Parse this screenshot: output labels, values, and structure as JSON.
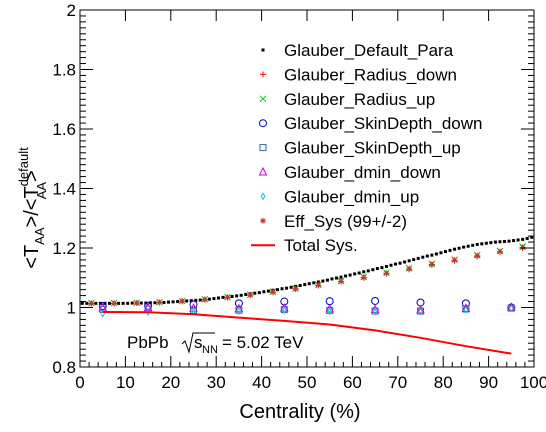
{
  "chart_data": {
    "type": "scatter",
    "xlabel": "Centrality (%)",
    "ylabel": "<T_AA>/<T_AA^default>",
    "ylabel_parts": {
      "lead": "<T",
      "sub1": "AA",
      "mid": ">/<T",
      "sup": "default",
      "sub2": "AA",
      "tail": ">"
    },
    "xlim": [
      0,
      100
    ],
    "ylim": [
      0.8,
      2.0
    ],
    "x_ticks": [
      "0",
      "10",
      "20",
      "30",
      "40",
      "50",
      "60",
      "70",
      "80",
      "90",
      "100"
    ],
    "y_ticks": [
      "0.8",
      "1",
      "1.2",
      "1.4",
      "1.6",
      "1.8",
      "2"
    ],
    "annotation": {
      "system": "PbPb",
      "sqrt_base": "s",
      "sqrt_sub": "NN",
      "energy": "= 5.02 TeV"
    },
    "legend_position": "top-right",
    "series": [
      {
        "name": "Glauber_Default_Para",
        "marker": "dot",
        "color": "#000000",
        "x": [
          0.5,
          1.5,
          2.5,
          3.5,
          4.5,
          5.5,
          6.5,
          7.5,
          8.5,
          9.5,
          10.5,
          11.5,
          12.5,
          13.5,
          14.5,
          15.5,
          16.5,
          17.5,
          18.5,
          19.5,
          20.5,
          21.5,
          22.5,
          23.5,
          24.5,
          25.5,
          26.5,
          27.5,
          28.5,
          29.5,
          30.5,
          31.5,
          32.5,
          33.5,
          34.5,
          35.5,
          36.5,
          37.5,
          38.5,
          39.5,
          40.5,
          41.5,
          42.5,
          43.5,
          44.5,
          45.5,
          46.5,
          47.5,
          48.5,
          49.5,
          50.5,
          51.5,
          52.5,
          53.5,
          54.5,
          55.5,
          56.5,
          57.5,
          58.5,
          59.5,
          60.5,
          61.5,
          62.5,
          63.5,
          64.5,
          65.5,
          66.5,
          67.5,
          68.5,
          69.5,
          70.5,
          71.5,
          72.5,
          73.5,
          74.5,
          75.5,
          76.5,
          77.5,
          78.5,
          79.5,
          80.5,
          81.5,
          82.5,
          83.5,
          84.5,
          85.5,
          86.5,
          87.5,
          88.5,
          89.5,
          90.5,
          91.5,
          92.5,
          93.5,
          94.5,
          95.5,
          96.5,
          97.5,
          98.5,
          99.5
        ],
        "y": [
          1.014,
          1.014,
          1.014,
          1.014,
          1.014,
          1.014,
          1.014,
          1.014,
          1.014,
          1.014,
          1.014,
          1.015,
          1.015,
          1.015,
          1.015,
          1.016,
          1.016,
          1.017,
          1.017,
          1.018,
          1.019,
          1.02,
          1.021,
          1.022,
          1.023,
          1.024,
          1.025,
          1.027,
          1.028,
          1.03,
          1.032,
          1.034,
          1.035,
          1.037,
          1.039,
          1.041,
          1.044,
          1.046,
          1.048,
          1.05,
          1.053,
          1.055,
          1.058,
          1.06,
          1.063,
          1.065,
          1.068,
          1.071,
          1.074,
          1.077,
          1.08,
          1.083,
          1.086,
          1.089,
          1.092,
          1.096,
          1.099,
          1.102,
          1.106,
          1.109,
          1.113,
          1.116,
          1.12,
          1.123,
          1.127,
          1.131,
          1.134,
          1.138,
          1.142,
          1.146,
          1.149,
          1.153,
          1.157,
          1.161,
          1.165,
          1.169,
          1.173,
          1.176,
          1.18,
          1.184,
          1.188,
          1.192,
          1.196,
          1.199,
          1.203,
          1.206,
          1.209,
          1.212,
          1.214,
          1.216,
          1.218,
          1.22,
          1.221,
          1.222,
          1.223,
          1.225,
          1.227,
          1.229,
          1.232,
          1.236
        ]
      },
      {
        "name": "Glauber_Radius_down",
        "marker": "plus",
        "color": "#ff0000",
        "x": [
          2.5,
          7.5,
          12.5,
          17.5,
          22.5,
          27.5,
          32.5,
          37.5,
          42.5,
          47.5,
          52.5,
          57.5,
          62.5,
          67.5,
          72.5,
          77.5,
          82.5,
          87.5,
          92.5,
          97.5
        ],
        "y": [
          1.013,
          1.014,
          1.015,
          1.017,
          1.021,
          1.026,
          1.033,
          1.041,
          1.051,
          1.062,
          1.074,
          1.087,
          1.1,
          1.114,
          1.128,
          1.143,
          1.157,
          1.172,
          1.186,
          1.2
        ]
      },
      {
        "name": "Glauber_Radius_up",
        "marker": "cross",
        "color": "#00cc00",
        "x": [
          2.5,
          7.5,
          12.5,
          17.5,
          22.5,
          27.5,
          32.5,
          37.5,
          42.5,
          47.5,
          52.5,
          57.5,
          62.5,
          67.5,
          72.5,
          77.5,
          82.5,
          87.5,
          92.5,
          97.5
        ],
        "y": [
          1.015,
          1.015,
          1.016,
          1.018,
          1.022,
          1.028,
          1.035,
          1.043,
          1.053,
          1.064,
          1.076,
          1.089,
          1.103,
          1.117,
          1.132,
          1.147,
          1.161,
          1.176,
          1.19,
          1.205
        ]
      },
      {
        "name": "Glauber_SkinDepth_down",
        "marker": "circle",
        "color": "#0000cc",
        "x": [
          5,
          15,
          25,
          35,
          45,
          55,
          65,
          75,
          85,
          95
        ],
        "y": [
          1.005,
          1.005,
          1.01,
          1.014,
          1.02,
          1.021,
          1.022,
          1.017,
          1.014,
          1.0
        ]
      },
      {
        "name": "Glauber_SkinDepth_up",
        "marker": "square",
        "color": "#3366aa",
        "x": [
          5,
          15,
          25,
          35,
          45,
          55,
          65,
          75,
          85,
          95
        ],
        "y": [
          0.994,
          0.995,
          0.991,
          0.991,
          0.993,
          0.99,
          0.988,
          0.988,
          0.995,
          0.998
        ]
      },
      {
        "name": "Glauber_dmin_down",
        "marker": "triangle",
        "color": "#cc00cc",
        "x": [
          5,
          15,
          25,
          35,
          45,
          55,
          65,
          75,
          85,
          95
        ],
        "y": [
          0.999,
          1.0,
          0.998,
          0.996,
          0.998,
          0.995,
          0.993,
          0.992,
          0.997,
          1.001
        ]
      },
      {
        "name": "Glauber_dmin_up",
        "marker": "diamond",
        "color": "#00cccc",
        "x": [
          5,
          15,
          25,
          35,
          45,
          55,
          65,
          75,
          85,
          95
        ],
        "y": [
          0.98,
          0.985,
          0.988,
          0.988,
          0.99,
          0.987,
          0.985,
          0.986,
          0.992,
          0.997
        ]
      },
      {
        "name": "Eff_Sys (99+/-2)",
        "marker": "star",
        "color": "#cc3333",
        "x": [
          2.5,
          7.5,
          12.5,
          17.5,
          22.5,
          27.5,
          32.5,
          37.5,
          42.5,
          47.5,
          52.5,
          57.5,
          62.5,
          67.5,
          72.5,
          77.5,
          82.5,
          87.5,
          92.5,
          97.5
        ],
        "y": [
          1.014,
          1.014,
          1.015,
          1.017,
          1.021,
          1.027,
          1.034,
          1.042,
          1.052,
          1.063,
          1.075,
          1.088,
          1.101,
          1.115,
          1.13,
          1.145,
          1.159,
          1.174,
          1.188,
          1.202
        ]
      },
      {
        "name": "Total Sys.",
        "marker": "line",
        "color": "#ff0000",
        "x": [
          5,
          15,
          25,
          35,
          45,
          55,
          65,
          75,
          85,
          95
        ],
        "y": [
          0.985,
          0.984,
          0.977,
          0.966,
          0.955,
          0.943,
          0.923,
          0.898,
          0.87,
          0.845
        ]
      }
    ]
  }
}
